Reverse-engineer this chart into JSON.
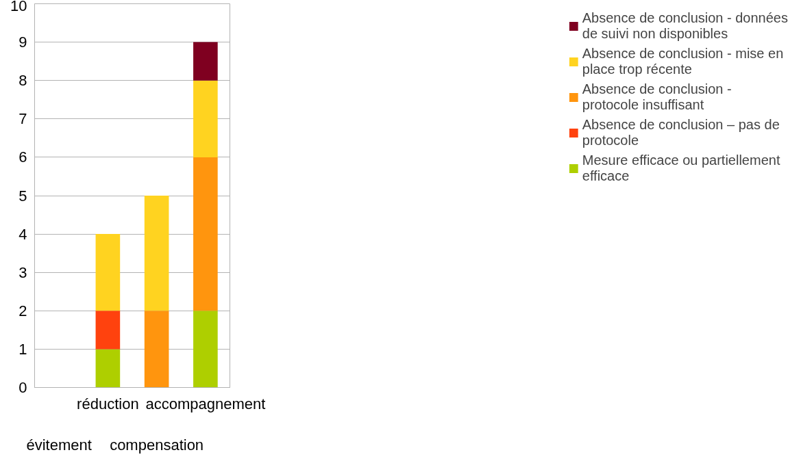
{
  "chart_data": {
    "type": "bar",
    "stacked": true,
    "categories": [
      "évitement",
      "réduction",
      "compensation",
      "accompagnement"
    ],
    "series": [
      {
        "name": "Mesure efficace ou partiellement efficace",
        "color": "#aecf00",
        "values": [
          0,
          1,
          0,
          2
        ]
      },
      {
        "name": "Absence de conclusion – pas de protocole",
        "color": "#ff420e",
        "values": [
          0,
          1,
          0,
          0
        ]
      },
      {
        "name": "Absence de conclusion - protocole insuffisant",
        "color": "#ff950e",
        "values": [
          0,
          0,
          2,
          4
        ]
      },
      {
        "name": "Absence de conclusion - mise en place trop récente",
        "color": "#ffd320",
        "values": [
          0,
          2,
          3,
          2
        ]
      },
      {
        "name": "Absence de conclusion - données de suivi non disponibles",
        "color": "#7f0020",
        "values": [
          0,
          0,
          0,
          1
        ]
      }
    ],
    "ylim": [
      0,
      10
    ],
    "yticks": [
      0,
      1,
      2,
      3,
      4,
      5,
      6,
      7,
      8,
      9,
      10
    ],
    "grid": "y",
    "legend": "right"
  }
}
